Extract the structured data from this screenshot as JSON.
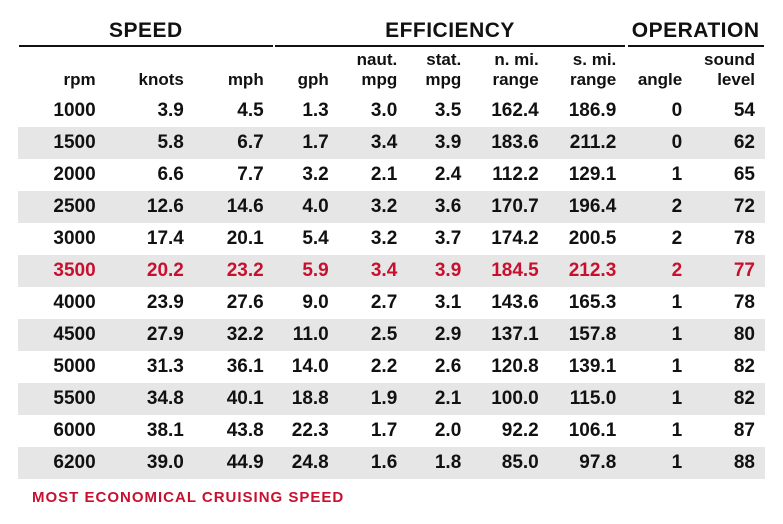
{
  "groups": {
    "speed": "SPEED",
    "efficiency": "EFFICIENCY",
    "operation": "OPERATION"
  },
  "headers_top": [
    "",
    "",
    "",
    "",
    "naut.",
    "stat.",
    "n. mi.",
    "s. mi.",
    "",
    "sound"
  ],
  "headers_bot": [
    "rpm",
    "knots",
    "mph",
    "gph",
    "mpg",
    "mpg",
    "range",
    "range",
    "angle",
    "level"
  ],
  "rows": [
    {
      "v": [
        "1000",
        "3.9",
        "4.5",
        "1.3",
        "3.0",
        "3.5",
        "162.4",
        "186.9",
        "0",
        "54"
      ],
      "hl": false
    },
    {
      "v": [
        "1500",
        "5.8",
        "6.7",
        "1.7",
        "3.4",
        "3.9",
        "183.6",
        "211.2",
        "0",
        "62"
      ],
      "hl": false
    },
    {
      "v": [
        "2000",
        "6.6",
        "7.7",
        "3.2",
        "2.1",
        "2.4",
        "112.2",
        "129.1",
        "1",
        "65"
      ],
      "hl": false
    },
    {
      "v": [
        "2500",
        "12.6",
        "14.6",
        "4.0",
        "3.2",
        "3.6",
        "170.7",
        "196.4",
        "2",
        "72"
      ],
      "hl": false
    },
    {
      "v": [
        "3000",
        "17.4",
        "20.1",
        "5.4",
        "3.2",
        "3.7",
        "174.2",
        "200.5",
        "2",
        "78"
      ],
      "hl": false
    },
    {
      "v": [
        "3500",
        "20.2",
        "23.2",
        "5.9",
        "3.4",
        "3.9",
        "184.5",
        "212.3",
        "2",
        "77"
      ],
      "hl": true
    },
    {
      "v": [
        "4000",
        "23.9",
        "27.6",
        "9.0",
        "2.7",
        "3.1",
        "143.6",
        "165.3",
        "1",
        "78"
      ],
      "hl": false
    },
    {
      "v": [
        "4500",
        "27.9",
        "32.2",
        "11.0",
        "2.5",
        "2.9",
        "137.1",
        "157.8",
        "1",
        "80"
      ],
      "hl": false
    },
    {
      "v": [
        "5000",
        "31.3",
        "36.1",
        "14.0",
        "2.2",
        "2.6",
        "120.8",
        "139.1",
        "1",
        "82"
      ],
      "hl": false
    },
    {
      "v": [
        "5500",
        "34.8",
        "40.1",
        "18.8",
        "1.9",
        "2.1",
        "100.0",
        "115.0",
        "1",
        "82"
      ],
      "hl": false
    },
    {
      "v": [
        "6000",
        "38.1",
        "43.8",
        "22.3",
        "1.7",
        "2.0",
        "92.2",
        "106.1",
        "1",
        "87"
      ],
      "hl": false
    },
    {
      "v": [
        "6200",
        "39.0",
        "44.9",
        "24.8",
        "1.6",
        "1.8",
        "85.0",
        "97.8",
        "1",
        "88"
      ],
      "hl": false
    }
  ],
  "footer": "MOST ECONOMICAL CRUISING SPEED",
  "colors": {
    "text": "#111111",
    "highlight": "#c8102e",
    "stripe": "#e6e6e6",
    "background": "#ffffff"
  },
  "col_widths_pct": [
    10,
    9,
    9,
    9,
    9,
    9,
    11,
    11,
    10,
    11
  ]
}
